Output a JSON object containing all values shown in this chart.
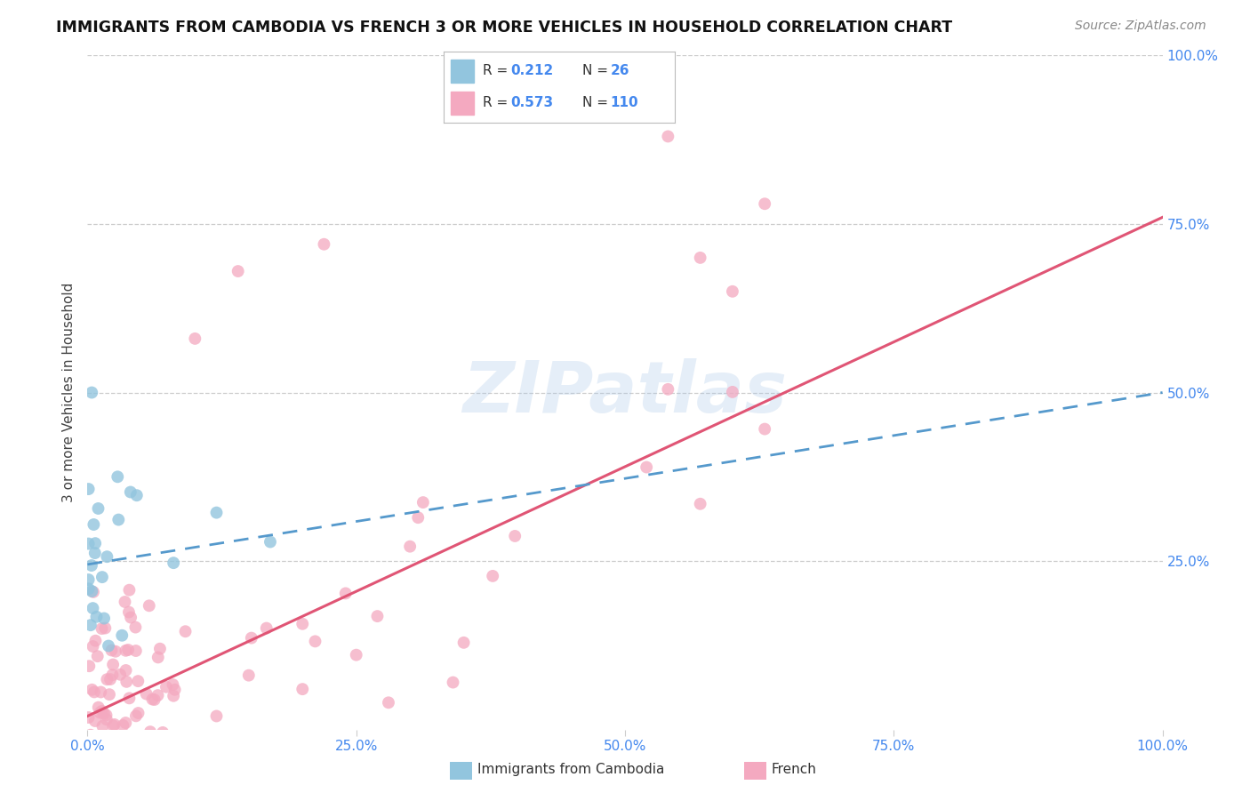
{
  "title": "IMMIGRANTS FROM CAMBODIA VS FRENCH 3 OR MORE VEHICLES IN HOUSEHOLD CORRELATION CHART",
  "source": "Source: ZipAtlas.com",
  "ylabel": "3 or more Vehicles in Household",
  "xmin": 0.0,
  "xmax": 1.0,
  "ymin": 0.0,
  "ymax": 1.0,
  "xtick_values": [
    0.0,
    0.25,
    0.5,
    0.75,
    1.0
  ],
  "xticklabels": [
    "0.0%",
    "25.0%",
    "50.0%",
    "75.0%",
    "100.0%"
  ],
  "ytick_right_values": [
    0.25,
    0.5,
    0.75,
    1.0
  ],
  "ytick_right_labels": [
    "25.0%",
    "50.0%",
    "75.0%",
    "100.0%"
  ],
  "watermark": "ZIPatlas",
  "color_cambodia": "#92c5de",
  "color_french": "#f4a9c0",
  "color_line_cambodia": "#5599cc",
  "color_line_french": "#e05575",
  "background_color": "#ffffff",
  "grid_color": "#cccccc",
  "french_line_x0": 0.0,
  "french_line_y0": 0.02,
  "french_line_x1": 1.0,
  "french_line_y1": 0.76,
  "cambodia_line_x0": 0.0,
  "cambodia_line_y0": 0.245,
  "cambodia_line_x1": 1.0,
  "cambodia_line_y1": 0.5
}
